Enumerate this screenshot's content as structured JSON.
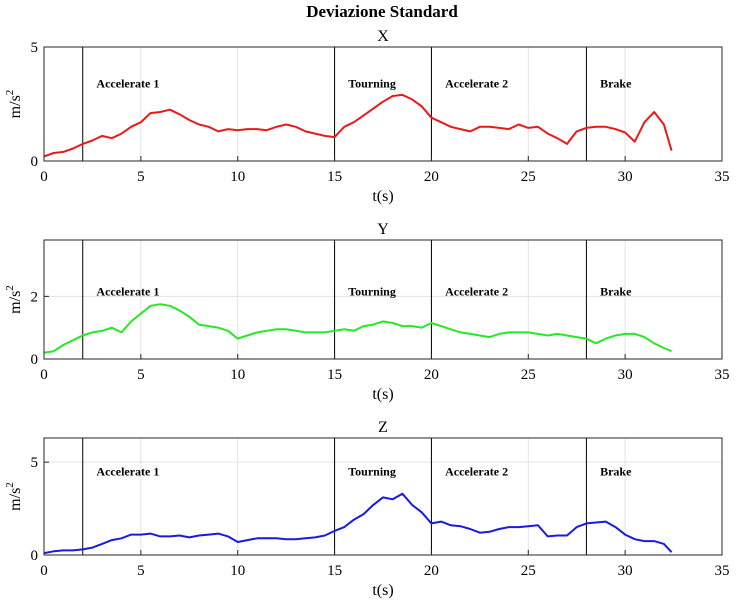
{
  "figure_title": "Deviazione Standard",
  "chart_data": [
    {
      "type": "line",
      "title": "X",
      "xlabel": "t(s)",
      "ylabel_base": "m/s",
      "ylabel_exp": "2",
      "xlim": [
        0,
        35
      ],
      "ylim": [
        0,
        5
      ],
      "xticks": [
        "0",
        "5",
        "10",
        "15",
        "20",
        "25",
        "30",
        "35"
      ],
      "yticks": [
        {
          "v": 0,
          "label": "0"
        },
        {
          "v": 5,
          "label": "5"
        }
      ],
      "grid": true,
      "phase_boundaries": [
        2,
        15,
        20,
        28
      ],
      "phase_labels": [
        {
          "text": "Accelerate 1",
          "x": 2.5
        },
        {
          "text": "Tourning",
          "x": 15.5
        },
        {
          "text": "Accelerate 2",
          "x": 20.5
        },
        {
          "text": "Brake",
          "x": 28.5
        }
      ],
      "phase_label_y": 3.4,
      "series": [
        {
          "color": "#e81a1a",
          "x": [
            0,
            0.5,
            1,
            1.5,
            2,
            2.5,
            3,
            3.5,
            4,
            4.5,
            5,
            5.5,
            6,
            6.5,
            7,
            7.5,
            8,
            8.5,
            9,
            9.5,
            10,
            10.5,
            11,
            11.5,
            12,
            12.5,
            13,
            13.5,
            14,
            14.5,
            15,
            15.5,
            16,
            16.5,
            17,
            17.5,
            18,
            18.5,
            19,
            19.5,
            20,
            20.5,
            21,
            21.5,
            22,
            22.5,
            23,
            23.5,
            24,
            24.5,
            25,
            25.5,
            26,
            26.5,
            27,
            27.5,
            28,
            28.5,
            29,
            29.5,
            30,
            30.5,
            31,
            31.5,
            32,
            32.4
          ],
          "y": [
            0.2,
            0.35,
            0.4,
            0.55,
            0.75,
            0.9,
            1.1,
            1.0,
            1.2,
            1.5,
            1.7,
            2.1,
            2.15,
            2.25,
            2.05,
            1.8,
            1.6,
            1.5,
            1.3,
            1.4,
            1.35,
            1.4,
            1.4,
            1.35,
            1.5,
            1.6,
            1.5,
            1.3,
            1.2,
            1.1,
            1.05,
            1.5,
            1.7,
            2.0,
            2.3,
            2.6,
            2.85,
            2.9,
            2.7,
            2.4,
            1.9,
            1.7,
            1.5,
            1.4,
            1.3,
            1.5,
            1.5,
            1.45,
            1.4,
            1.6,
            1.45,
            1.5,
            1.2,
            1.0,
            0.75,
            1.3,
            1.45,
            1.5,
            1.5,
            1.4,
            1.25,
            0.85,
            1.7,
            2.15,
            1.6,
            0.45
          ]
        }
      ]
    },
    {
      "type": "line",
      "title": "Y",
      "xlabel": "t(s)",
      "ylabel_base": "m/s",
      "ylabel_exp": "2",
      "xlim": [
        0,
        35
      ],
      "ylim": [
        0,
        3.8
      ],
      "xticks": [
        "0",
        "5",
        "10",
        "15",
        "20",
        "25",
        "30",
        "35"
      ],
      "yticks": [
        {
          "v": 0,
          "label": "0"
        },
        {
          "v": 2,
          "label": "2"
        }
      ],
      "grid": true,
      "phase_boundaries": [
        2,
        15,
        20,
        28
      ],
      "phase_labels": [
        {
          "text": "Accelerate 1",
          "x": 2.5
        },
        {
          "text": "Tourning",
          "x": 15.5
        },
        {
          "text": "Accelerate 2",
          "x": 20.5
        },
        {
          "text": "Brake",
          "x": 28.5
        }
      ],
      "phase_label_y": 2.15,
      "series": [
        {
          "color": "#26e826",
          "x": [
            0,
            0.5,
            1,
            1.5,
            2,
            2.5,
            3,
            3.5,
            4,
            4.5,
            5,
            5.5,
            6,
            6.5,
            7,
            7.5,
            8,
            8.5,
            9,
            9.5,
            10,
            10.5,
            11,
            11.5,
            12,
            12.5,
            13,
            13.5,
            14,
            14.5,
            15,
            15.5,
            16,
            16.5,
            17,
            17.5,
            18,
            18.5,
            19,
            19.5,
            20,
            20.5,
            21,
            21.5,
            22,
            22.5,
            23,
            23.5,
            24,
            24.5,
            25,
            25.5,
            26,
            26.5,
            27,
            27.5,
            28,
            28.5,
            29,
            29.5,
            30,
            30.5,
            31,
            31.5,
            32,
            32.4
          ],
          "y": [
            0.2,
            0.25,
            0.45,
            0.6,
            0.75,
            0.85,
            0.9,
            1.0,
            0.85,
            1.2,
            1.45,
            1.7,
            1.75,
            1.7,
            1.55,
            1.35,
            1.1,
            1.05,
            1.0,
            0.9,
            0.65,
            0.75,
            0.85,
            0.9,
            0.95,
            0.95,
            0.9,
            0.85,
            0.85,
            0.85,
            0.9,
            0.95,
            0.9,
            1.05,
            1.1,
            1.2,
            1.15,
            1.05,
            1.05,
            1.0,
            1.15,
            1.05,
            0.95,
            0.85,
            0.8,
            0.75,
            0.7,
            0.8,
            0.85,
            0.85,
            0.85,
            0.8,
            0.75,
            0.8,
            0.75,
            0.7,
            0.65,
            0.5,
            0.65,
            0.75,
            0.8,
            0.8,
            0.7,
            0.5,
            0.35,
            0.25
          ]
        }
      ]
    },
    {
      "type": "line",
      "title": "Z",
      "xlabel": "t(s)",
      "ylabel_base": "m/s",
      "ylabel_exp": "2",
      "xlim": [
        0,
        35
      ],
      "ylim": [
        0,
        6.3
      ],
      "xticks": [
        "0",
        "5",
        "10",
        "15",
        "20",
        "25",
        "30",
        "35"
      ],
      "yticks": [
        {
          "v": 0,
          "label": "0"
        },
        {
          "v": 5,
          "label": "5"
        }
      ],
      "grid": true,
      "phase_boundaries": [
        2,
        15,
        20,
        28
      ],
      "phase_labels": [
        {
          "text": "Accelerate 1",
          "x": 2.5
        },
        {
          "text": "Tourning",
          "x": 15.5
        },
        {
          "text": "Accelerate 2",
          "x": 20.5
        },
        {
          "text": "Brake",
          "x": 28.5
        }
      ],
      "phase_label_y": 4.5,
      "series": [
        {
          "color": "#1a1ae0",
          "x": [
            0,
            0.5,
            1,
            1.5,
            2,
            2.5,
            3,
            3.5,
            4,
            4.5,
            5,
            5.5,
            6,
            6.5,
            7,
            7.5,
            8,
            8.5,
            9,
            9.5,
            10,
            10.5,
            11,
            11.5,
            12,
            12.5,
            13,
            13.5,
            14,
            14.5,
            15,
            15.5,
            16,
            16.5,
            17,
            17.5,
            18,
            18.5,
            19,
            19.5,
            20,
            20.5,
            21,
            21.5,
            22,
            22.5,
            23,
            23.5,
            24,
            24.5,
            25,
            25.5,
            26,
            26.5,
            27,
            27.5,
            28,
            28.5,
            29,
            29.5,
            30,
            30.5,
            31,
            31.5,
            32,
            32.4
          ],
          "y": [
            0.1,
            0.2,
            0.25,
            0.25,
            0.3,
            0.4,
            0.6,
            0.8,
            0.9,
            1.1,
            1.1,
            1.15,
            1.0,
            1.0,
            1.05,
            0.95,
            1.05,
            1.1,
            1.15,
            1.0,
            0.7,
            0.8,
            0.9,
            0.9,
            0.9,
            0.85,
            0.85,
            0.9,
            0.95,
            1.05,
            1.3,
            1.5,
            1.9,
            2.2,
            2.7,
            3.1,
            3.0,
            3.3,
            2.7,
            2.3,
            1.7,
            1.8,
            1.6,
            1.55,
            1.4,
            1.2,
            1.25,
            1.4,
            1.5,
            1.5,
            1.55,
            1.6,
            1.0,
            1.05,
            1.05,
            1.5,
            1.7,
            1.75,
            1.8,
            1.5,
            1.1,
            0.85,
            0.75,
            0.75,
            0.6,
            0.15
          ]
        }
      ]
    }
  ]
}
